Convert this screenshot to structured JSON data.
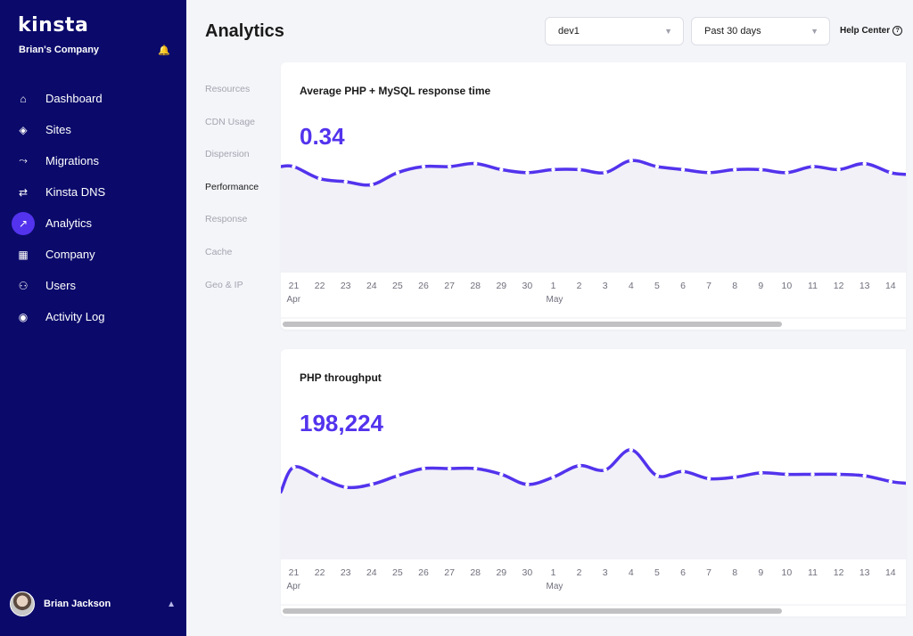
{
  "app": {
    "logo": "kinsta",
    "company": "Brian's Company"
  },
  "sidebar": {
    "items": [
      {
        "label": "Dashboard",
        "icon": "home-icon",
        "glyph": "⌂"
      },
      {
        "label": "Sites",
        "icon": "layers-icon",
        "glyph": "◈"
      },
      {
        "label": "Migrations",
        "icon": "migrate-icon",
        "glyph": "⤳"
      },
      {
        "label": "Kinsta DNS",
        "icon": "dns-icon",
        "glyph": "⇄"
      },
      {
        "label": "Analytics",
        "icon": "trend-icon",
        "glyph": "↗"
      },
      {
        "label": "Company",
        "icon": "building-icon",
        "glyph": "▦"
      },
      {
        "label": "Users",
        "icon": "user-add-icon",
        "glyph": "⚇"
      },
      {
        "label": "Activity Log",
        "icon": "eye-icon",
        "glyph": "◉"
      }
    ],
    "active_index": 4,
    "user": {
      "name": "Brian Jackson"
    }
  },
  "header": {
    "title": "Analytics",
    "site_select": {
      "value": "dev1"
    },
    "range_select": {
      "value": "Past 30 days"
    },
    "help_label": "Help Center"
  },
  "subnav": {
    "items": [
      "Resources",
      "CDN Usage",
      "Dispersion",
      "Performance",
      "Response",
      "Cache",
      "Geo & IP"
    ],
    "active_index": 3
  },
  "cards": [
    {
      "title": "Average PHP + MySQL response time",
      "value": "0.34"
    },
    {
      "title": "PHP throughput",
      "value": "198,224"
    }
  ],
  "chart_data": [
    {
      "type": "line",
      "title": "Average PHP + MySQL response time",
      "x": [
        "21",
        "22",
        "23",
        "24",
        "25",
        "26",
        "27",
        "28",
        "29",
        "30",
        "1",
        "2",
        "3",
        "4",
        "5",
        "6",
        "7",
        "8",
        "9",
        "10",
        "11",
        "12",
        "13",
        "14"
      ],
      "month_labels": [
        {
          "index": 0,
          "label": "Apr"
        },
        {
          "index": 10,
          "label": "May"
        }
      ],
      "values": [
        0.35,
        0.31,
        0.3,
        0.29,
        0.33,
        0.35,
        0.35,
        0.36,
        0.34,
        0.33,
        0.34,
        0.34,
        0.33,
        0.37,
        0.35,
        0.34,
        0.33,
        0.34,
        0.34,
        0.33,
        0.35,
        0.34,
        0.36,
        0.33
      ],
      "ylim": [
        0,
        1.0
      ],
      "color": "#5333ed"
    },
    {
      "type": "line",
      "title": "PHP throughput",
      "x": [
        "21",
        "22",
        "23",
        "24",
        "25",
        "26",
        "27",
        "28",
        "29",
        "30",
        "1",
        "2",
        "3",
        "4",
        "5",
        "6",
        "7",
        "8",
        "9",
        "10",
        "11",
        "12",
        "13",
        "14"
      ],
      "month_labels": [
        {
          "index": 0,
          "label": "Apr"
        },
        {
          "index": 10,
          "label": "May"
        }
      ],
      "values": [
        6400,
        5700,
        5000,
        5200,
        5800,
        6300,
        6300,
        6300,
        5900,
        5200,
        5700,
        6500,
        6200,
        7600,
        5800,
        6100,
        5600,
        5700,
        6000,
        5900,
        5900,
        5900,
        5800,
        5400
      ],
      "ylim": [
        0,
        21000
      ],
      "color": "#5333ed"
    }
  ]
}
